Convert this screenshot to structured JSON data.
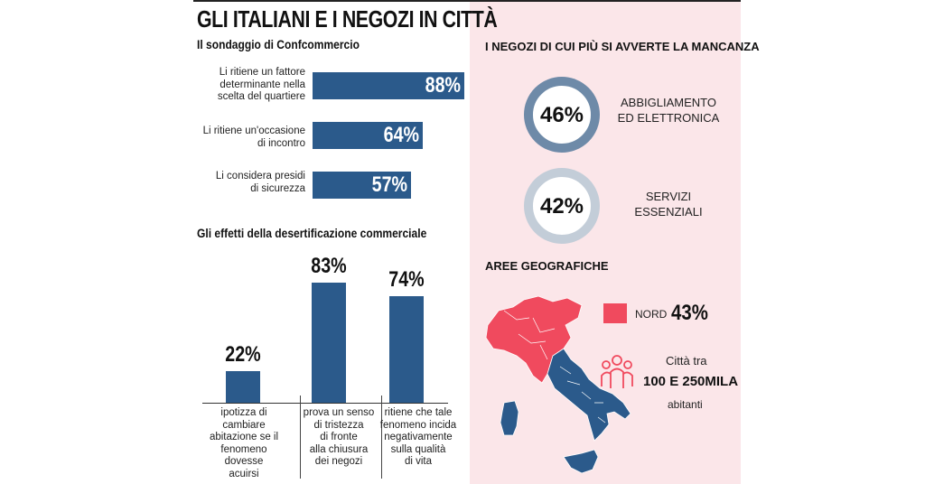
{
  "title": "GLI ITALIANI E I NEGOZI IN CITTÀ",
  "survey": {
    "title": "Il sondaggio di Confcommercio"
  },
  "effects": {
    "title": "Gli effetti della desertificazione commerciale"
  },
  "chart_data": [
    {
      "type": "bar",
      "orientation": "horizontal",
      "title": "Il sondaggio di Confcommercio",
      "categories": [
        "Li ritiene un fattore determinante nella scelta del quartiere",
        "Li ritiene un'occasione di incontro",
        "Li considera presidi di sicurezza"
      ],
      "values": [
        88,
        64,
        57
      ],
      "value_labels": [
        "88%",
        "64%",
        "57%"
      ],
      "unit": "%",
      "xlim": [
        0,
        88
      ]
    },
    {
      "type": "bar",
      "orientation": "vertical",
      "title": "Gli effetti della desertificazione commerciale",
      "categories": [
        "ipotizza di cambiare abitazione se il fenomeno dovesse acuirsi",
        "prova un senso di tristezza di fronte alla chiusura dei negozi",
        "ritiene che tale fenomeno incida negativamente sulla qualità di vita"
      ],
      "values": [
        22,
        83,
        74
      ],
      "value_labels": [
        "22%",
        "83%",
        "74%"
      ],
      "unit": "%",
      "ylim": [
        0,
        100
      ]
    }
  ],
  "hbars": [
    {
      "label_lines": [
        "Li ritiene un fattore",
        "determinante nella",
        "scelta del quartiere"
      ],
      "value": "88%"
    },
    {
      "label_lines": [
        "Li  ritiene un'occasione",
        "di incontro"
      ],
      "value": "64%"
    },
    {
      "label_lines": [
        "Li considera presidi",
        "di sicurezza"
      ],
      "value": "57%"
    }
  ],
  "vbars": [
    {
      "label_lines": [
        "ipotizza di cambiare",
        "abitazione se il",
        "fenomeno dovesse",
        "acuirsi"
      ],
      "value": "22%"
    },
    {
      "label_lines": [
        "prova un senso",
        "di tristezza",
        "di fronte",
        "alla chiusura",
        "dei negozi"
      ],
      "value": "83%"
    },
    {
      "label_lines": [
        "ritiene che tale",
        "fenomeno incida",
        "negativamente",
        "sulla qualità",
        "di vita"
      ],
      "value": "74%"
    }
  ],
  "missing_shops": {
    "title": "I NEGOZI DI CUI PIÙ SI AVVERTE LA MANCANZA",
    "items": [
      {
        "value": "46%",
        "label_lines": [
          "ABBIGLIAMENTO",
          "ED ELETTRONICA"
        ],
        "ring_color": "#6e8aa8"
      },
      {
        "value": "42%",
        "label_lines": [
          "SERVIZI",
          "ESSENZIALI"
        ],
        "ring_color": "#c3cdd8"
      }
    ]
  },
  "geo": {
    "title": "AREE GEOGRAFICHE",
    "legend": {
      "label": "NORD",
      "value": "43%",
      "color": "#f04a5e"
    },
    "south_color": "#2b5a8b",
    "cities": {
      "line1": "Città tra",
      "line2": "100 E 250MILA",
      "line3": "abitanti"
    }
  },
  "colors": {
    "bar": "#2b5a8b",
    "right_bg": "#fbe6e9",
    "north": "#f04a5e"
  },
  "icons": [
    "people-group-icon",
    "italy-map"
  ]
}
